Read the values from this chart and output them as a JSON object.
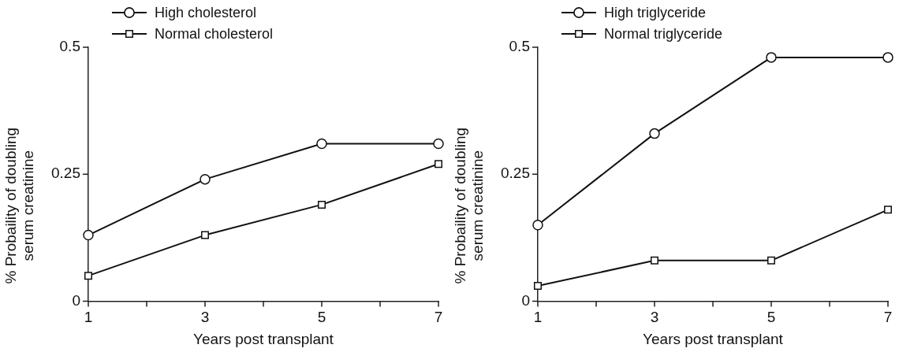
{
  "chart_data": [
    {
      "type": "line",
      "xlabel": "Years post transplant",
      "ylabel": "% Probaility of doubling serum creatinine",
      "x": [
        1,
        3,
        5,
        7
      ],
      "series": [
        {
          "name": "High cholesterol",
          "color": "#111111",
          "marker": "circle",
          "values": [
            0.13,
            0.24,
            0.31,
            0.31
          ]
        },
        {
          "name": "Normal cholesterol",
          "color": "#111111",
          "marker": "square",
          "values": [
            0.05,
            0.13,
            0.19,
            0.27
          ]
        }
      ],
      "xlim": [
        1,
        7
      ],
      "xticks": [
        1,
        {
          "value": 2,
          "label": null
        },
        3,
        {
          "value": 4,
          "label": null
        },
        5,
        {
          "value": 6,
          "label": null
        },
        7
      ],
      "ylim": [
        0,
        0.5
      ],
      "yticks": [
        0,
        0.25,
        0.5
      ],
      "grid": false,
      "legend": "top left",
      "line_style": "solid"
    },
    {
      "type": "line",
      "xlabel": "Years post transplant",
      "ylabel": "% Probaility of doubling serum creatinine",
      "x": [
        1,
        3,
        5,
        7
      ],
      "series": [
        {
          "name": "High triglyceride",
          "color": "#111111",
          "marker": "circle",
          "values": [
            0.15,
            0.33,
            0.48,
            0.48
          ]
        },
        {
          "name": "Normal triglyceride",
          "color": "#111111",
          "marker": "square",
          "values": [
            0.03,
            0.08,
            0.08,
            0.18
          ]
        }
      ],
      "xlim": [
        1,
        7
      ],
      "xticks": [
        1,
        {
          "value": 2,
          "label": null
        },
        3,
        {
          "value": 4,
          "label": null
        },
        5,
        {
          "value": 6,
          "label": null
        },
        7
      ],
      "ylim": [
        0,
        0.5
      ],
      "yticks": [
        0,
        0.25,
        0.5
      ],
      "grid": false,
      "legend": "top left",
      "line_style": "solid"
    }
  ]
}
